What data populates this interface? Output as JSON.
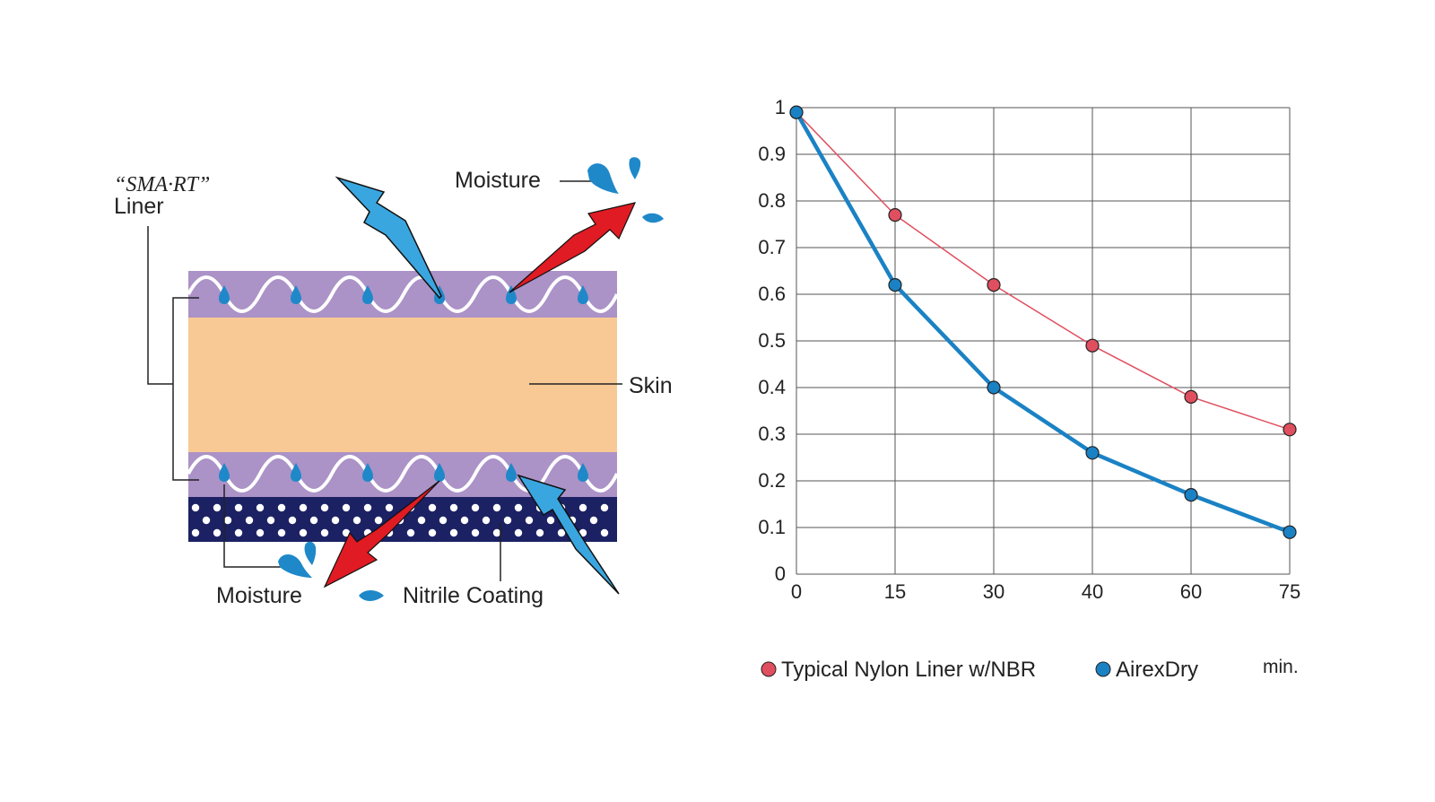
{
  "diagram": {
    "liner_brand": "“SMA·RT”",
    "liner_word": "Liner",
    "label_moisture_top": "Moisture",
    "label_skin": "Skin",
    "label_moisture_bottom": "Moisture",
    "label_nitrile": "Nitrile Coating",
    "colors": {
      "liner_purple": "#ab92c7",
      "skin": "#f8c994",
      "coating": "#1b2163",
      "drop_blue": "#1f88c9",
      "arrow_blue": "#3aa6e0",
      "arrow_red": "#e01b23"
    }
  },
  "chart_data": {
    "type": "line",
    "x": [
      0,
      15,
      30,
      40,
      60,
      75
    ],
    "x_tick_labels": [
      "0",
      "15",
      "30",
      "40",
      "60",
      "75"
    ],
    "y_tick_labels": [
      "0",
      "0.1",
      "0.2",
      "0.3",
      "0.4",
      "0.5",
      "0.6",
      "0.7",
      "0.8",
      "0.9",
      "1"
    ],
    "ylim": [
      0,
      1
    ],
    "grid": true,
    "unit_label": "min.",
    "series": [
      {
        "name": "Typical Nylon Liner w/NBR",
        "color": "#e04f5f",
        "values": [
          0.99,
          0.77,
          0.62,
          0.49,
          0.38,
          0.31
        ]
      },
      {
        "name": "AirexDry",
        "color": "#1a82c4",
        "values": [
          0.99,
          0.62,
          0.4,
          0.26,
          0.17,
          0.09
        ]
      }
    ]
  }
}
